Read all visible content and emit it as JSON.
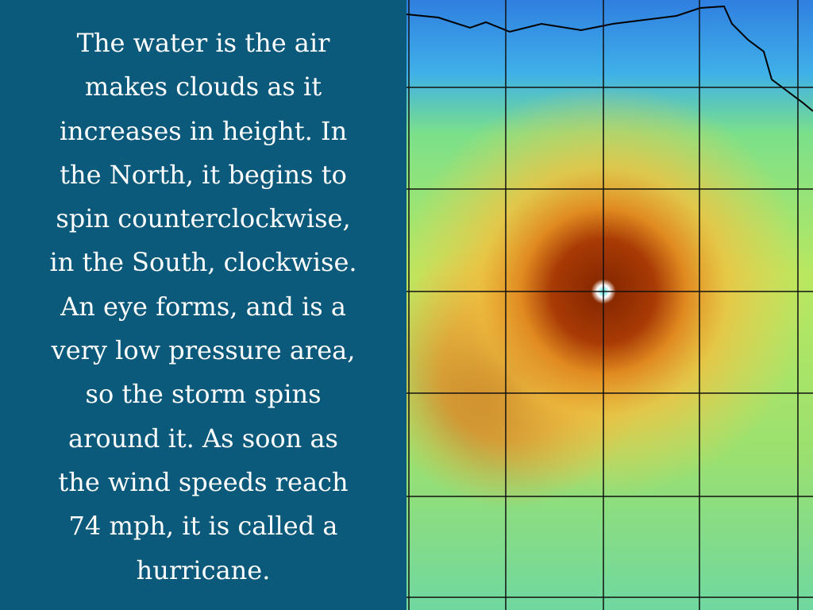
{
  "slide": {
    "text_lines": [
      "The water is the air",
      "makes clouds as it",
      "increases in height. In",
      "the North, it begins to",
      "spin counterclockwise,",
      "in the South, clockwise.",
      "An eye forms, and is a",
      "very low pressure area,",
      "so the storm spins",
      "around it. As soon as",
      "the wind speeds reach",
      "74 mph, it is called a",
      "hurricane."
    ]
  }
}
